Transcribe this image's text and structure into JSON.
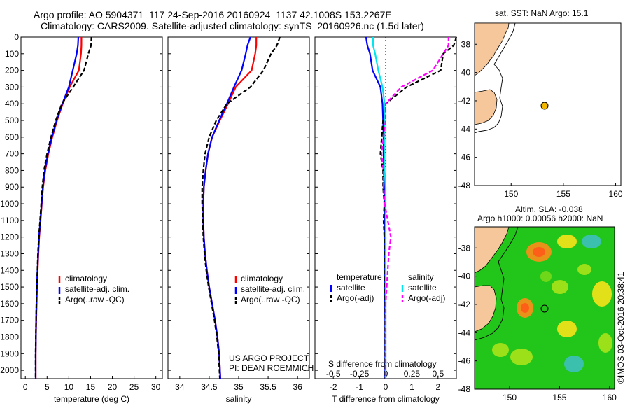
{
  "header": {
    "line1": "Argo profile: AO 5904371_117 24-Sep-2016 20160924_1137 42.1008S 153.2267E",
    "line2": "Climatology: CARS2009. Satellite-adjusted climatology: synTS_20160926.nc (1.5d later)"
  },
  "colors": {
    "climatology": "#ff0000",
    "satellite": "#0000ff",
    "argo": "#000000",
    "sal_satellite": "#00e5ee",
    "sal_argo": "#ff00ff",
    "land": "#f6c79a"
  },
  "depth_ticks": [
    "0",
    "100",
    "200",
    "300",
    "400",
    "500",
    "600",
    "700",
    "800",
    "900",
    "1000",
    "1100",
    "1200",
    "1300",
    "1400",
    "1500",
    "1600",
    "1700",
    "1800",
    "1900",
    "2000"
  ],
  "panels": {
    "temperature": {
      "xlabel": "temperature (deg C)",
      "xticks": [
        "0",
        "5",
        "10",
        "15",
        "20",
        "25",
        "30"
      ],
      "legend": [
        "climatology",
        "satellite-adj. clim.",
        "Argo(..raw -QC)"
      ]
    },
    "salinity": {
      "xlabel": "salinity",
      "xticks": [
        "34",
        "34.5",
        "35",
        "35.5",
        "36"
      ],
      "legend": [
        "climatology",
        "satellite-adj. clim.",
        "Argo(..raw -QC)"
      ],
      "credit1": "US ARGO PROJECT",
      "credit2": "PI: DEAN ROEMMICH"
    },
    "difference": {
      "xlabel": "T difference from climatology",
      "xticks": [
        "-2",
        "-1",
        "0",
        "1",
        "2"
      ],
      "top_label": "S difference from climatology",
      "top_ticks": [
        "-0.5",
        "-0.25",
        "0",
        "0.25",
        "0.5"
      ],
      "legend_t_head": "temperature",
      "legend_t": [
        "satellite",
        "Argo(-adj)"
      ],
      "legend_s_head": "salinity",
      "legend_s": [
        "satellite",
        "Argo(-adj)"
      ]
    }
  },
  "map_sst": {
    "title": "sat. SST: NaN Argo: 15.1",
    "lat_ticks": [
      "-38",
      "-40",
      "-42",
      "-44",
      "-46",
      "-48"
    ],
    "lon_ticks": [
      "150",
      "155",
      "160"
    ]
  },
  "map_sla": {
    "title1": "Altim. SLA: -0.038",
    "title2": "Argo h1000: 0.00056 h2000: NaN",
    "lat_ticks": [
      "-38",
      "-40",
      "-42",
      "-44",
      "-46",
      "-48"
    ],
    "lon_ticks": [
      "150",
      "155",
      "160"
    ]
  },
  "watermark": "©IMOS 03-Oct-2016 20:38:41",
  "chart_data": [
    {
      "type": "line",
      "ylabel": "",
      "xlabel": "temperature (deg C)",
      "xlim": [
        -1,
        31.5
      ],
      "ylim": [
        2050,
        0
      ],
      "series": [
        {
          "name": "climatology",
          "x": [
            12.9,
            12.9,
            12.8,
            12.3,
            10.2,
            8.6,
            7.3,
            6.2,
            5.3,
            4.6,
            4.1,
            3.8,
            3.5,
            3.2,
            3.0,
            2.85,
            2.7,
            2.6,
            2.5,
            2.45,
            2.4,
            2.4
          ],
          "depth": [
            0,
            50,
            100,
            200,
            300,
            400,
            500,
            600,
            700,
            800,
            900,
            1000,
            1100,
            1200,
            1300,
            1400,
            1500,
            1600,
            1700,
            1800,
            1900,
            2050
          ]
        },
        {
          "name": "satellite-adj. clim.",
          "x": [
            12.2,
            12.1,
            11.8,
            10.9,
            10.0,
            8.5,
            7.2,
            6.1,
            5.2,
            4.5,
            4.05,
            3.75,
            3.45,
            3.15,
            2.95,
            2.8,
            2.65,
            2.55,
            2.48,
            2.42,
            2.38,
            2.38
          ],
          "depth": [
            0,
            50,
            100,
            200,
            300,
            400,
            500,
            600,
            700,
            800,
            900,
            1000,
            1100,
            1200,
            1300,
            1400,
            1500,
            1600,
            1700,
            1800,
            1900,
            2050
          ]
        },
        {
          "name": "Argo(..raw -QC)",
          "x": [
            15.2,
            15.1,
            14.5,
            13.5,
            11.0,
            8.4,
            7.0,
            5.9,
            5.0,
            4.3,
            3.9,
            3.65,
            3.4,
            3.1,
            2.9,
            2.78,
            2.63,
            2.54,
            2.47,
            2.41,
            2.37,
            2.37
          ],
          "depth": [
            0,
            50,
            100,
            200,
            300,
            400,
            500,
            600,
            700,
            800,
            900,
            1000,
            1100,
            1200,
            1300,
            1400,
            1500,
            1600,
            1700,
            1800,
            1900,
            2050
          ]
        }
      ]
    },
    {
      "type": "line",
      "xlabel": "salinity",
      "xlim": [
        33.8,
        36.2
      ],
      "ylim": [
        2050,
        0
      ],
      "series": [
        {
          "name": "climatology",
          "x": [
            35.3,
            35.3,
            35.28,
            35.22,
            34.95,
            34.82,
            34.68,
            34.55,
            34.48,
            34.44,
            34.41,
            34.4,
            34.4,
            34.41,
            34.43,
            34.46,
            34.5,
            34.55,
            34.6,
            34.64,
            34.67,
            34.69
          ],
          "depth": [
            0,
            50,
            100,
            200,
            300,
            400,
            500,
            600,
            700,
            800,
            900,
            1000,
            1100,
            1200,
            1300,
            1400,
            1500,
            1600,
            1700,
            1800,
            1900,
            2050
          ]
        },
        {
          "name": "satellite-adj. clim.",
          "x": [
            35.2,
            35.15,
            35.12,
            35.05,
            34.92,
            34.8,
            34.67,
            34.55,
            34.48,
            34.44,
            34.41,
            34.4,
            34.4,
            34.41,
            34.43,
            34.46,
            34.5,
            34.55,
            34.6,
            34.64,
            34.67,
            34.69
          ],
          "depth": [
            0,
            50,
            100,
            200,
            300,
            400,
            500,
            600,
            700,
            800,
            900,
            1000,
            1100,
            1200,
            1300,
            1400,
            1500,
            1600,
            1700,
            1800,
            1900,
            2050
          ]
        },
        {
          "name": "Argo(..raw -QC)",
          "x": [
            35.7,
            35.65,
            35.55,
            35.42,
            35.2,
            34.8,
            34.62,
            34.5,
            34.43,
            34.4,
            34.38,
            34.38,
            34.39,
            34.4,
            34.42,
            34.45,
            34.49,
            34.54,
            34.59,
            34.63,
            34.66,
            34.68
          ],
          "depth": [
            0,
            50,
            100,
            200,
            300,
            400,
            500,
            600,
            700,
            800,
            900,
            1000,
            1100,
            1200,
            1300,
            1400,
            1500,
            1600,
            1700,
            1800,
            1900,
            2050
          ]
        }
      ]
    },
    {
      "type": "line",
      "xlabel": "T difference from climatology",
      "xlim": [
        -2.7,
        2.7
      ],
      "ylim": [
        2050,
        0
      ],
      "series": [
        {
          "name": "temperature satellite",
          "x": [
            -0.75,
            -0.7,
            -0.6,
            -0.5,
            -0.2,
            -0.12,
            -0.1,
            -0.08,
            -0.08,
            -0.07,
            -0.05,
            -0.05,
            -0.05,
            -0.05,
            -0.05,
            -0.04,
            -0.03,
            -0.03,
            -0.02,
            -0.02,
            -0.02,
            -0.02
          ],
          "depth": [
            0,
            50,
            100,
            200,
            300,
            400,
            500,
            600,
            700,
            800,
            900,
            1000,
            1100,
            1200,
            1300,
            1400,
            1500,
            1600,
            1700,
            1800,
            1900,
            2050
          ]
        },
        {
          "name": "temperature Argo(-adj)",
          "x": [
            2.7,
            2.6,
            2.2,
            2.1,
            0.8,
            0.0,
            -0.1,
            -0.15,
            -0.2,
            -0.1,
            -0.1,
            -0.05,
            -0.08,
            -0.05,
            -0.05,
            -0.03,
            -0.03,
            -0.02,
            -0.02,
            -0.02,
            -0.02,
            -0.02
          ],
          "depth": [
            0,
            50,
            100,
            200,
            300,
            400,
            500,
            600,
            700,
            800,
            900,
            1000,
            1100,
            1200,
            1300,
            1400,
            1500,
            1600,
            1700,
            1800,
            1900,
            2050
          ]
        },
        {
          "name": "salinity satellite",
          "x": [
            -0.12,
            -0.12,
            -0.1,
            -0.07,
            -0.03,
            -0.01,
            -0.01,
            -0.01,
            -0.01,
            -0.01,
            0,
            0,
            0,
            0,
            0,
            0,
            0,
            0,
            0,
            0,
            0,
            0
          ],
          "depth": [
            0,
            50,
            100,
            200,
            300,
            400,
            500,
            600,
            700,
            800,
            900,
            1000,
            1100,
            1200,
            1300,
            1400,
            1500,
            1600,
            1700,
            1800,
            1900,
            2050
          ]
        },
        {
          "name": "salinity Argo(-adj)",
          "x": [
            0.6,
            0.6,
            0.55,
            0.45,
            0.15,
            0.0,
            0.0,
            -0.02,
            -0.04,
            -0.02,
            -0.02,
            -0.01,
            0.02,
            0.05,
            0.03,
            0.02,
            0.01,
            0.0,
            0.0,
            0.0,
            0.0,
            0.0
          ],
          "depth": [
            0,
            50,
            100,
            200,
            300,
            400,
            500,
            600,
            700,
            800,
            900,
            1000,
            1100,
            1200,
            1300,
            1400,
            1500,
            1600,
            1700,
            1800,
            1900,
            2050
          ]
        }
      ]
    }
  ],
  "argo_position": {
    "lon": 153.2267,
    "lat": -42.1008
  }
}
